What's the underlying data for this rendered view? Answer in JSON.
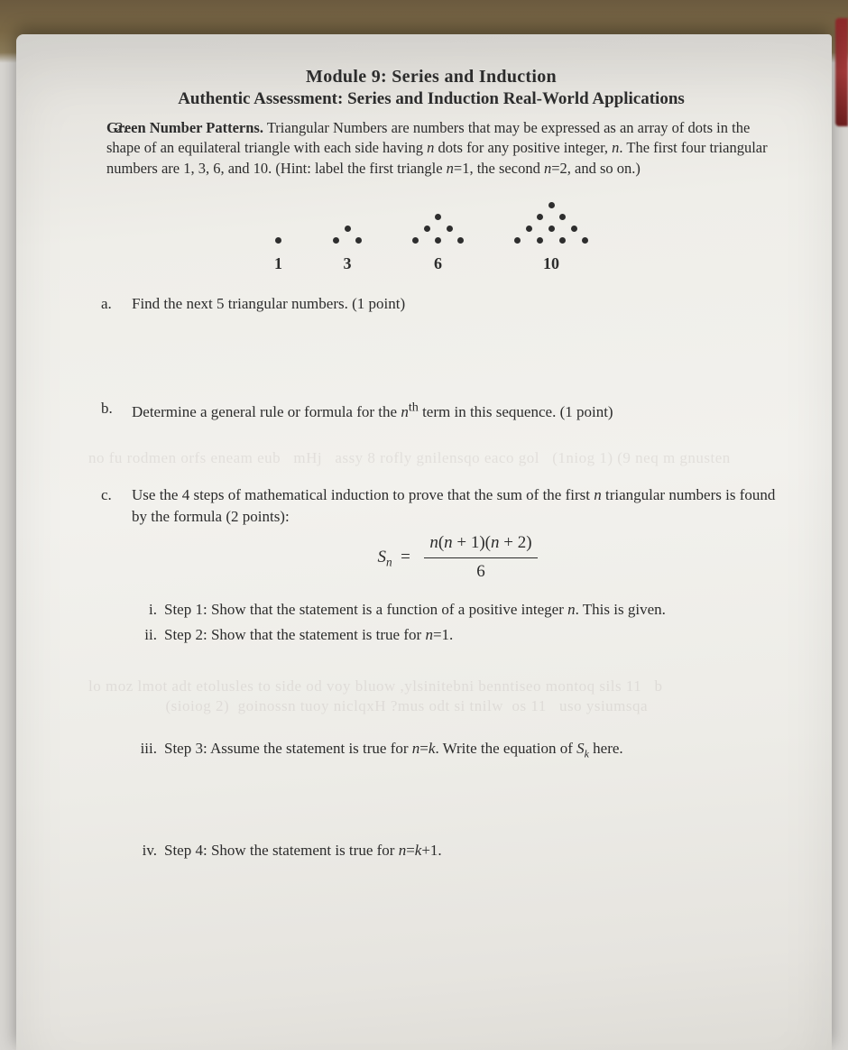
{
  "header": {
    "module": "Module 9: Series and Induction",
    "assessment": "Authentic Assessment: Series and Induction Real-World Applications"
  },
  "problem": {
    "number": "2.",
    "title": "Green Number Patterns.",
    "body": "Triangular Numbers are numbers that may be expressed as an array of dots in the shape of an equilateral triangle with each side having n dots for any positive integer, n. The first four triangular numbers are 1, 3, 6, and 10. (Hint: label the first triangle n=1, the second n=2, and so on.)"
  },
  "figure": {
    "triangles": [
      {
        "rows": 1,
        "label": "1"
      },
      {
        "rows": 2,
        "label": "3"
      },
      {
        "rows": 3,
        "label": "6"
      },
      {
        "rows": 4,
        "label": "10"
      }
    ],
    "dot_color": "#2e2e2e"
  },
  "parts": {
    "a": {
      "label": "a.",
      "text": "Find the next 5 triangular numbers. (1 point)"
    },
    "b": {
      "label": "b.",
      "text_html": "Determine a general rule or formula for the nᵗʰ term in this sequence. (1 point)"
    },
    "c": {
      "label": "c.",
      "intro": "Use the 4 steps of mathematical induction to prove that the sum of the first n triangular numbers is found by the formula (2 points):",
      "formula": {
        "lhs": "Sₙ =",
        "num": "n(n + 1)(n + 2)",
        "den": "6"
      },
      "steps": {
        "i": {
          "label": "i.",
          "text": "Step 1: Show that the statement is a function of a positive integer n. This is given."
        },
        "ii": {
          "label": "ii.",
          "text": "Step 2: Show that the statement is true for n=1."
        },
        "iii": {
          "label": "iii.",
          "text_html": "Step 3: Assume the statement is true for n=k. Write the equation of S_k here."
        },
        "iv": {
          "label": "iv.",
          "text": "Step 4: Show the statement is true for n=k+1."
        }
      }
    }
  },
  "bleed": {
    "b1": "no fu rodmen orfs eneam eub   mHj   assy 8 rofly gnilensqo eaco gol   (1niog 1) (9 neq m gnusten",
    "b2": "lo moz lmot adt etolusles to side od voy bluow ,ylsinitebni benntiseo montoq sils 11   b\n                  (sioiog 2)  goinossn tuoy niclqxH ?mus odt si tnilw  os 11   uso ysiumsqa"
  },
  "style": {
    "body_fontsize_pt": 12.5,
    "header_fontsize_pt": 15,
    "text_color": "#2c2c2c",
    "paper_bg": "#efeee9",
    "bleed_color": "rgba(90,70,70,0.10)"
  }
}
